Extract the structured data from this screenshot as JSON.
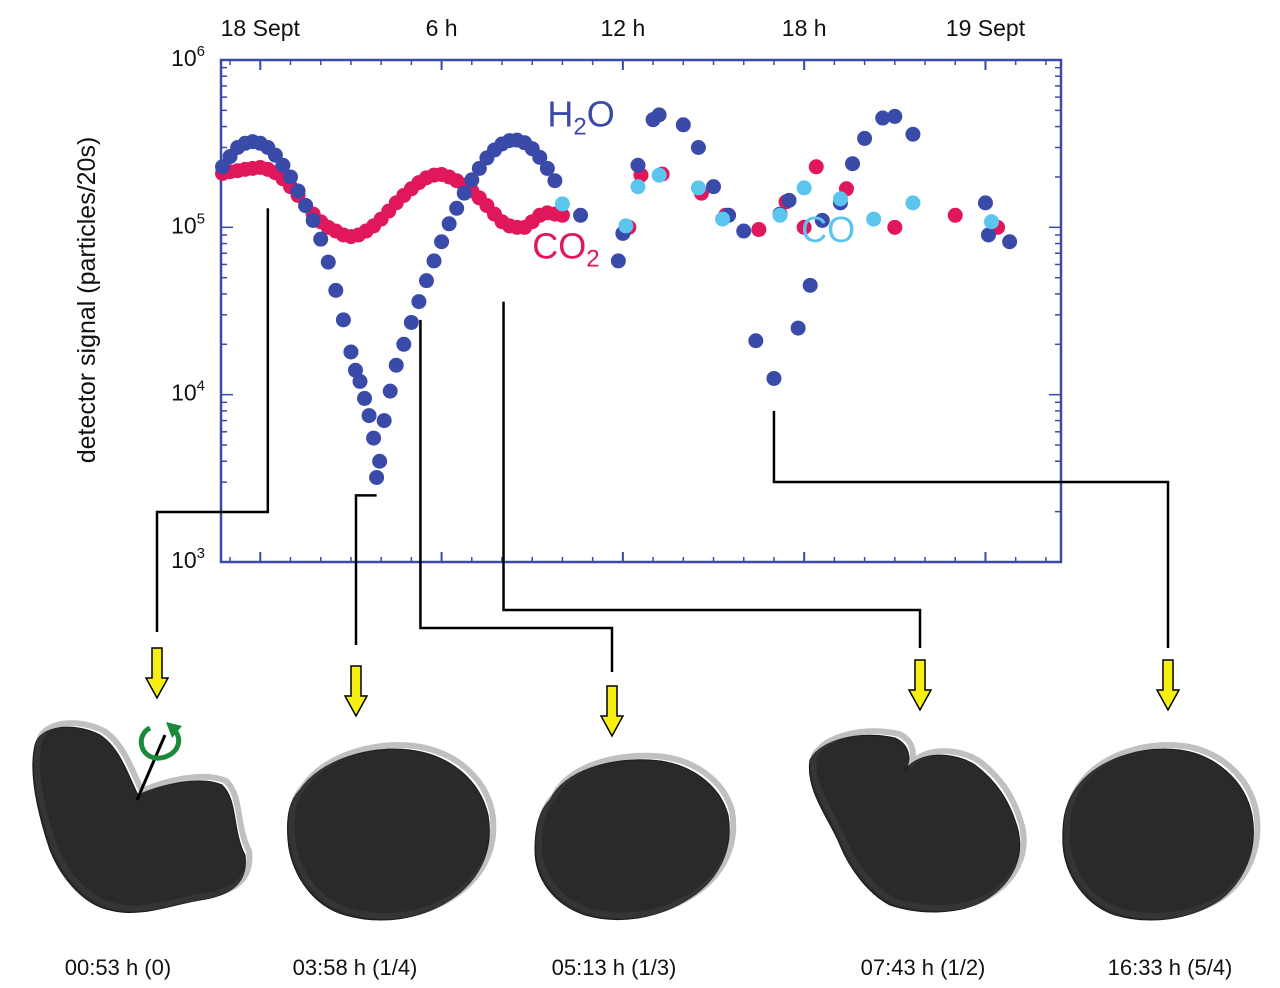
{
  "chart_data": {
    "type": "scatter",
    "ylabel": "detector signal (particles/20s)",
    "x_unit": "hours after 18 Sept 00:00",
    "xlim": [
      -1.3,
      26.5
    ],
    "yscale": "log",
    "ylim": [
      1000,
      1000000
    ],
    "x_ticks": [
      {
        "x": 0,
        "label": "18 Sept"
      },
      {
        "x": 6,
        "label": "6 h"
      },
      {
        "x": 12,
        "label": "12 h"
      },
      {
        "x": 18,
        "label": "18 h"
      },
      {
        "x": 24,
        "label": "19 Sept"
      }
    ],
    "y_ticks": [
      {
        "value": 1000,
        "base": "10",
        "exp": "3"
      },
      {
        "value": 10000,
        "base": "10",
        "exp": "4"
      },
      {
        "value": 100000,
        "base": "10",
        "exp": "5"
      },
      {
        "value": 1000000,
        "base": "10",
        "exp": "6"
      }
    ],
    "series": [
      {
        "name_parts": [
          {
            "t": "H",
            "sub": false
          },
          {
            "t": "2",
            "sub": true
          },
          {
            "t": "O",
            "sub": false
          }
        ],
        "color": "#3a4aa8",
        "points": [
          [
            -1.25,
            230000
          ],
          [
            -1.0,
            265000
          ],
          [
            -0.75,
            300000
          ],
          [
            -0.5,
            318000
          ],
          [
            -0.25,
            325000
          ],
          [
            0.0,
            318000
          ],
          [
            0.25,
            300000
          ],
          [
            0.5,
            270000
          ],
          [
            0.75,
            235000
          ],
          [
            1.0,
            200000
          ],
          [
            1.25,
            165000
          ],
          [
            1.5,
            135000
          ],
          [
            1.75,
            110000
          ],
          [
            2.0,
            85000
          ],
          [
            2.25,
            62000
          ],
          [
            2.5,
            42000
          ],
          [
            2.75,
            28000
          ],
          [
            3.0,
            18000
          ],
          [
            3.15,
            14000
          ],
          [
            3.3,
            12000
          ],
          [
            3.45,
            9500
          ],
          [
            3.6,
            7500
          ],
          [
            3.75,
            5500
          ],
          [
            3.85,
            3200
          ],
          [
            3.95,
            4000
          ],
          [
            4.1,
            7000
          ],
          [
            4.3,
            10500
          ],
          [
            4.5,
            15000
          ],
          [
            4.75,
            20000
          ],
          [
            5.0,
            27000
          ],
          [
            5.25,
            36000
          ],
          [
            5.5,
            48000
          ],
          [
            5.75,
            63000
          ],
          [
            6.0,
            82000
          ],
          [
            6.25,
            105000
          ],
          [
            6.5,
            130000
          ],
          [
            6.75,
            160000
          ],
          [
            7.0,
            192000
          ],
          [
            7.25,
            225000
          ],
          [
            7.5,
            260000
          ],
          [
            7.75,
            290000
          ],
          [
            8.0,
            315000
          ],
          [
            8.25,
            330000
          ],
          [
            8.5,
            332000
          ],
          [
            8.75,
            320000
          ],
          [
            9.0,
            295000
          ],
          [
            9.25,
            262000
          ],
          [
            9.5,
            225000
          ],
          [
            9.75,
            190000
          ],
          [
            10.6,
            118000
          ],
          [
            11.85,
            63000
          ],
          [
            12.0,
            92000
          ],
          [
            12.5,
            235000
          ],
          [
            13.0,
            440000
          ],
          [
            13.2,
            470000
          ],
          [
            14.0,
            410000
          ],
          [
            14.5,
            300000
          ],
          [
            15.0,
            175000
          ],
          [
            15.5,
            118000
          ],
          [
            16.0,
            95000
          ],
          [
            16.4,
            21000
          ],
          [
            17.0,
            12500
          ],
          [
            17.2,
            120000
          ],
          [
            17.5,
            145000
          ],
          [
            17.8,
            25000
          ],
          [
            18.2,
            45000
          ],
          [
            18.6,
            110000
          ],
          [
            19.2,
            140000
          ],
          [
            19.6,
            240000
          ],
          [
            20.0,
            340000
          ],
          [
            20.6,
            450000
          ],
          [
            21.0,
            460000
          ],
          [
            21.6,
            360000
          ],
          [
            24.0,
            140000
          ],
          [
            24.1,
            90000
          ],
          [
            24.8,
            82000
          ]
        ]
      },
      {
        "name_parts": [
          {
            "t": "CO",
            "sub": false
          },
          {
            "t": "2",
            "sub": true
          }
        ],
        "color": "#e0175a",
        "points": [
          [
            -1.25,
            210000
          ],
          [
            -1.0,
            215000
          ],
          [
            -0.75,
            218000
          ],
          [
            -0.5,
            222000
          ],
          [
            -0.25,
            225000
          ],
          [
            0.0,
            228000
          ],
          [
            0.25,
            222000
          ],
          [
            0.5,
            212000
          ],
          [
            0.75,
            195000
          ],
          [
            1.0,
            175000
          ],
          [
            1.25,
            155000
          ],
          [
            1.5,
            135000
          ],
          [
            1.75,
            120000
          ],
          [
            2.0,
            108000
          ],
          [
            2.25,
            100000
          ],
          [
            2.5,
            95000
          ],
          [
            2.75,
            90000
          ],
          [
            3.0,
            88000
          ],
          [
            3.25,
            90000
          ],
          [
            3.5,
            95000
          ],
          [
            3.75,
            102000
          ],
          [
            4.0,
            112000
          ],
          [
            4.25,
            125000
          ],
          [
            4.5,
            140000
          ],
          [
            4.75,
            155000
          ],
          [
            5.0,
            170000
          ],
          [
            5.25,
            185000
          ],
          [
            5.5,
            198000
          ],
          [
            5.75,
            205000
          ],
          [
            6.0,
            207000
          ],
          [
            6.25,
            200000
          ],
          [
            6.5,
            190000
          ],
          [
            6.75,
            178000
          ],
          [
            7.0,
            165000
          ],
          [
            7.25,
            150000
          ],
          [
            7.5,
            135000
          ],
          [
            7.75,
            120000
          ],
          [
            8.0,
            108000
          ],
          [
            8.25,
            102000
          ],
          [
            8.5,
            100000
          ],
          [
            8.75,
            100000
          ],
          [
            9.0,
            108000
          ],
          [
            9.25,
            118000
          ],
          [
            9.5,
            122000
          ],
          [
            9.75,
            120000
          ],
          [
            10.0,
            118000
          ],
          [
            12.2,
            100000
          ],
          [
            12.6,
            205000
          ],
          [
            13.3,
            208000
          ],
          [
            14.6,
            160000
          ],
          [
            15.4,
            118000
          ],
          [
            16.5,
            97000
          ],
          [
            17.4,
            142000
          ],
          [
            18.0,
            100000
          ],
          [
            18.4,
            230000
          ],
          [
            19.4,
            170000
          ],
          [
            21.0,
            100000
          ],
          [
            23.0,
            118000
          ],
          [
            24.4,
            100000
          ]
        ]
      },
      {
        "name_parts": [
          {
            "t": "CO",
            "sub": false
          }
        ],
        "color": "#5bc5ee",
        "points": [
          [
            10.0,
            138000
          ],
          [
            12.1,
            102000
          ],
          [
            12.5,
            175000
          ],
          [
            13.2,
            205000
          ],
          [
            14.5,
            172000
          ],
          [
            15.3,
            112000
          ],
          [
            17.2,
            118000
          ],
          [
            18.0,
            172000
          ],
          [
            19.2,
            148000
          ],
          [
            20.3,
            112000
          ],
          [
            21.6,
            140000
          ],
          [
            24.2,
            108000
          ]
        ]
      }
    ],
    "series_label_pos": [
      [
        9.5,
        400000
      ],
      [
        9.0,
        65000
      ],
      [
        17.9,
        82000
      ]
    ],
    "callouts": [
      {
        "caption": "00:53 h (0)",
        "x": 0.25,
        "y": 130000
      },
      {
        "caption": "03:58 h (1/4)",
        "x": 3.85,
        "y": 2500
      },
      {
        "caption": "05:13 h (1/3)",
        "x": 5.3,
        "y": 28000
      },
      {
        "caption": "07:43 h (1/2)",
        "x": 8.05,
        "y": 36000
      },
      {
        "caption": "16:33 h (5/4)",
        "x": 17.0,
        "y": 8000
      }
    ]
  }
}
